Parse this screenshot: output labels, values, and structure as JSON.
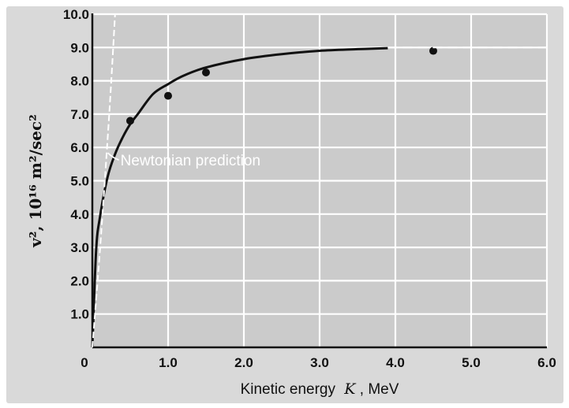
{
  "chart_data": {
    "type": "scatter",
    "xlabel": "Kinetic energy",
    "xlabel_var": "K",
    "xlabel_unit": ", MeV",
    "ylabel": "v², 10¹⁶ m²/sec²",
    "xlim": [
      0,
      6.0
    ],
    "ylim": [
      0,
      10.0
    ],
    "x_ticks": [
      "0",
      "1.0",
      "2.0",
      "3.0",
      "4.0",
      "5.0",
      "6.0"
    ],
    "y_ticks": [
      "1.0",
      "2.0",
      "3.0",
      "4.0",
      "5.0",
      "6.0",
      "7.0",
      "8.0",
      "9.0",
      "10.0"
    ],
    "grid": true,
    "series": [
      {
        "kind": "points",
        "x": [
          0.5,
          1.0,
          1.5,
          4.5
        ],
        "y": [
          6.8,
          7.55,
          8.25,
          8.9
        ]
      },
      {
        "kind": "curve",
        "x": [
          0,
          0.05,
          0.1,
          0.2,
          0.3,
          0.4,
          0.5,
          0.6,
          0.8,
          1.0,
          1.2,
          1.5,
          2.0,
          2.5,
          3.0,
          3.5,
          3.9
        ],
        "y": [
          0,
          2.9,
          3.9,
          5.1,
          5.8,
          6.3,
          6.7,
          7.0,
          7.6,
          7.9,
          8.15,
          8.4,
          8.65,
          8.8,
          8.9,
          8.95,
          8.98
        ]
      },
      {
        "kind": "newtonian",
        "x": [
          0,
          0.1,
          0.2,
          0.25,
          0.3
        ],
        "y": [
          0,
          2.9,
          6.2,
          8.0,
          10.0
        ]
      },
      {
        "kind": "asymptote",
        "x": [
          3.9,
          6.0
        ],
        "y": [
          9.0,
          9.0
        ]
      }
    ],
    "annotations": [
      {
        "text": "Newtonian prediction",
        "x": 0.35,
        "y": 5.6
      }
    ],
    "colors": {
      "plot_background": "#cbcbcb",
      "frame_background": "#d9d9d9",
      "grid": "#ffffff",
      "curve": "#111111",
      "points": "#111111",
      "newtonian": "#ffffff"
    }
  }
}
